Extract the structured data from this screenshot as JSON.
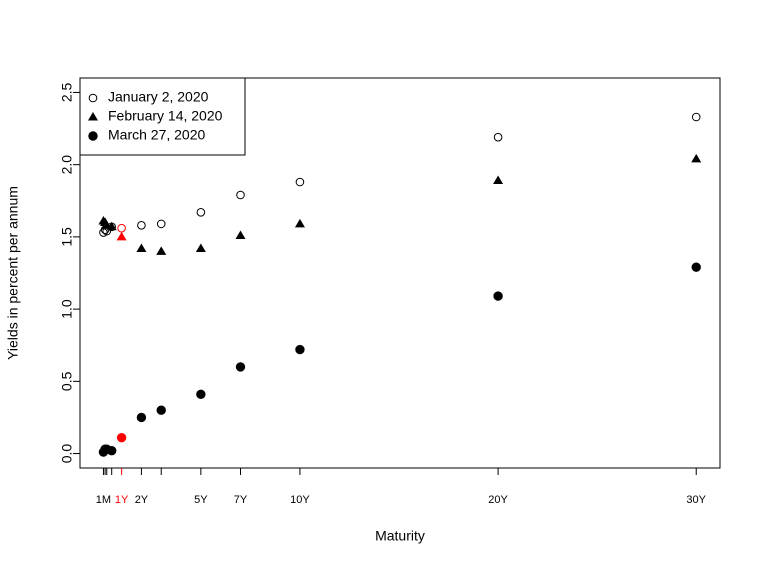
{
  "chart_data": {
    "type": "scatter",
    "x_label": "Maturity",
    "y_label": "Yields in percent per annum",
    "x": [
      0.0833,
      0.1667,
      0.25,
      0.5,
      1,
      2,
      3,
      5,
      7,
      10,
      20,
      30
    ],
    "series": [
      {
        "name": "January 2, 2020",
        "color": "#000000",
        "marker": "open-circle",
        "values": [
          1.53,
          1.55,
          1.54,
          1.57,
          1.56,
          1.58,
          1.59,
          1.67,
          1.79,
          1.88,
          2.19,
          2.33
        ]
      },
      {
        "name": "February 14, 2020",
        "color": "#000000",
        "marker": "triangle",
        "values": [
          1.61,
          1.6,
          1.58,
          1.57,
          1.5,
          1.42,
          1.4,
          1.42,
          1.51,
          1.59,
          1.89,
          2.04
        ]
      },
      {
        "name": "March 27, 2020",
        "color": "#000000",
        "marker": "circle",
        "values": [
          0.01,
          0.03,
          0.03,
          0.02,
          0.11,
          0.25,
          0.3,
          0.41,
          0.6,
          0.72,
          1.09,
          1.29
        ]
      }
    ],
    "highlight": {
      "x": 1,
      "color": "#ff0000"
    },
    "xlim": [
      -1.1,
      31.2
    ],
    "ylim": [
      -0.1,
      2.6
    ],
    "xticks": [
      {
        "value": 0.0833,
        "label": "1M"
      },
      {
        "value": 0.1667,
        "label": null
      },
      {
        "value": 0.25,
        "label": null
      },
      {
        "value": 0.5,
        "label": null
      },
      {
        "value": 1,
        "label": "1Y"
      },
      {
        "value": 2,
        "label": "2Y"
      },
      {
        "value": 3,
        "label": null
      },
      {
        "value": 5,
        "label": "5Y"
      },
      {
        "value": 7,
        "label": "7Y"
      },
      {
        "value": 10,
        "label": "10Y"
      },
      {
        "value": 20,
        "label": "20Y"
      },
      {
        "value": 30,
        "label": "30Y"
      }
    ],
    "yticks": [
      {
        "value": 0,
        "label": "0.0"
      },
      0.5,
      {
        "value": 1,
        "label": "1.0"
      },
      1.5,
      {
        "value": 2,
        "label": "2.0"
      },
      2.5
    ],
    "grid": false,
    "legend": "top-left"
  }
}
